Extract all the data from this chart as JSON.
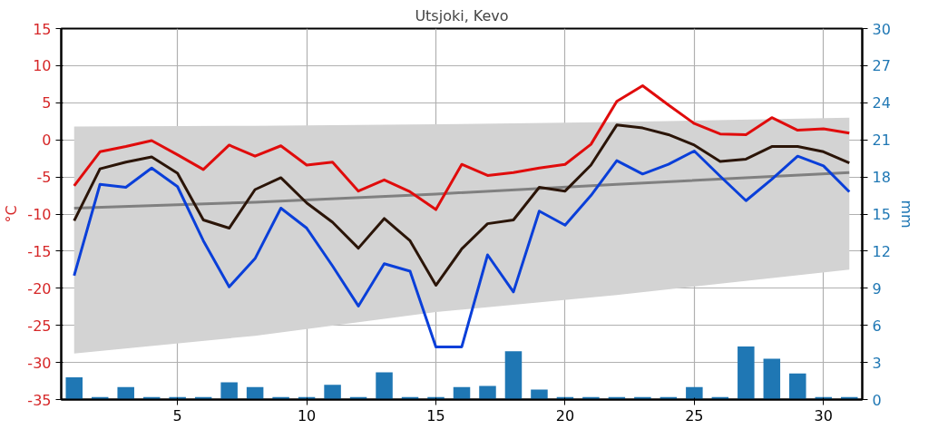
{
  "chart_data": {
    "type": "line",
    "title": "Utsjoki, Kevo",
    "ylabel": "°C",
    "y2label": "mm",
    "x": [
      1,
      2,
      3,
      4,
      5,
      6,
      7,
      8,
      9,
      10,
      11,
      12,
      13,
      14,
      15,
      16,
      17,
      18,
      19,
      20,
      21,
      22,
      23,
      24,
      25,
      26,
      27,
      28,
      29,
      30,
      31
    ],
    "xlim": [
      0.5,
      31.5
    ],
    "xticks": [
      5,
      10,
      15,
      20,
      25,
      30
    ],
    "ylim": [
      -35,
      15
    ],
    "yticks": [
      -35,
      -30,
      -25,
      -20,
      -15,
      -10,
      -5,
      0,
      5,
      10,
      15
    ],
    "y2lim": [
      0,
      30
    ],
    "y2ticks": [
      0,
      3,
      6,
      9,
      12,
      15,
      18,
      21,
      24,
      27,
      30
    ],
    "grid": true,
    "line_style": "solid",
    "marker": "none",
    "series": [
      {
        "color": "#808080",
        "x": [
          1,
          8,
          15,
          22,
          31
        ],
        "values": [
          -9.2,
          -8.4,
          -7.3,
          -6.0,
          -4.4
        ],
        "lower": [
          -28.8,
          -26.4,
          -23.2,
          -20.9,
          -17.5
        ],
        "upper": [
          1.8,
          1.9,
          2.1,
          2.4,
          3.0
        ]
      },
      {
        "type": "bar",
        "axis": "y2",
        "color": "#1f77b4",
        "values": [
          1.8,
          0.2,
          1.0,
          0.2,
          0.2,
          0.2,
          1.4,
          1.0,
          0.2,
          0.2,
          1.2,
          0.2,
          2.2,
          0.2,
          0.2,
          1.0,
          1.1,
          3.9,
          0.8,
          0.2,
          0.2,
          0.2,
          0.2,
          0.2,
          1.0,
          0.2,
          4.3,
          3.3,
          2.1,
          0.2,
          0.2
        ]
      },
      {
        "color": "#e00c0c",
        "values": [
          -6.2,
          -1.6,
          -0.9,
          -0.1,
          -2.0,
          -4.0,
          -0.7,
          -2.2,
          -0.8,
          -3.4,
          -3.0,
          -6.9,
          -5.4,
          -7.0,
          -9.4,
          -3.3,
          -4.8,
          -4.4,
          -3.8,
          -3.3,
          -0.6,
          5.2,
          7.3,
          4.7,
          2.2,
          0.8,
          0.7,
          3.0,
          1.3,
          1.5,
          0.9
        ]
      },
      {
        "color": "#2b1508",
        "values": [
          -10.9,
          -3.9,
          -3.0,
          -2.3,
          -4.5,
          -10.8,
          -11.9,
          -6.7,
          -5.1,
          -8.5,
          -11.1,
          -14.6,
          -10.6,
          -13.6,
          -19.6,
          -14.7,
          -11.3,
          -10.8,
          -6.4,
          -6.9,
          -3.4,
          2.0,
          1.6,
          0.7,
          -0.7,
          -2.9,
          -2.6,
          -0.9,
          -0.9,
          -1.6,
          -3.1
        ]
      },
      {
        "color": "#0a3fd9",
        "values": [
          -18.3,
          -6.0,
          -6.4,
          -3.8,
          -6.3,
          -13.6,
          -19.8,
          -16.0,
          -9.2,
          -11.9,
          -17.0,
          -22.4,
          -16.7,
          -17.7,
          -27.9,
          -27.9,
          -15.5,
          -20.5,
          -9.6,
          -11.5,
          -7.5,
          -2.8,
          -4.6,
          -3.3,
          -1.5,
          -4.9,
          -8.2,
          -5.3,
          -2.2,
          -3.5,
          -7.0
        ]
      }
    ]
  }
}
